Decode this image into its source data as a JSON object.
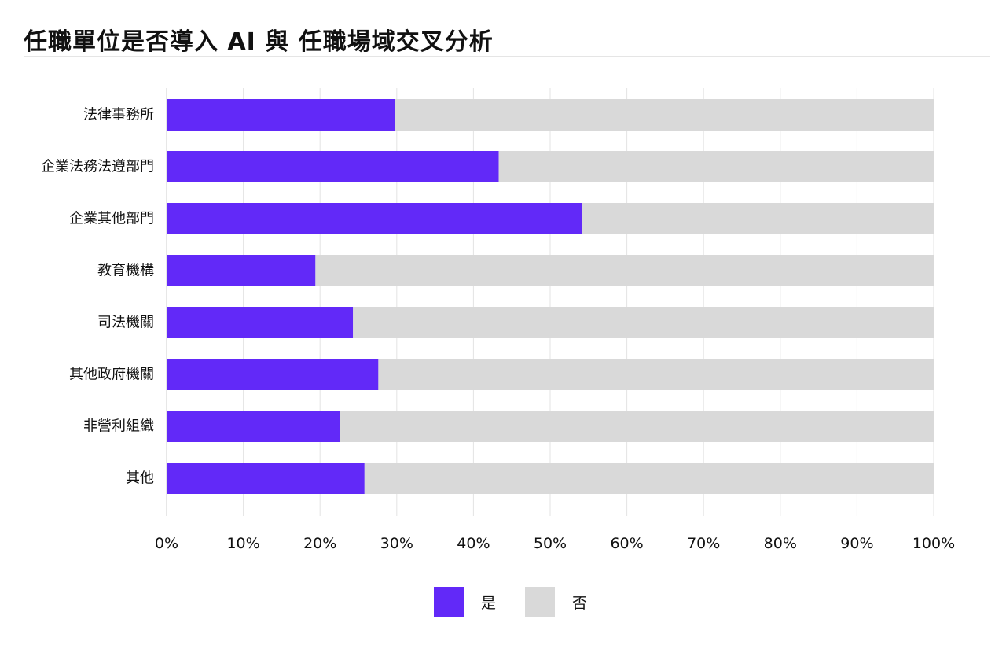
{
  "title": "任職單位是否導入 AI 與 任職場域交叉分析",
  "colors": {
    "yes": "#6229f8",
    "no": "#d9d9d9",
    "grid": "#e3e3e3",
    "axis": "#cfcfcf"
  },
  "legend": [
    {
      "label": "是",
      "color": "#6229f8"
    },
    {
      "label": "否",
      "color": "#d9d9d9"
    }
  ],
  "chart_data": {
    "type": "bar",
    "orientation": "horizontal",
    "stacked": true,
    "normalized": true,
    "title": "任職單位是否導入 AI 與 任職場域交叉分析",
    "categories": [
      "法律事務所",
      "企業法務法遵部門",
      "企業其他部門",
      "教育機構",
      "司法機關",
      "其他政府機關",
      "非營利組織",
      "其他"
    ],
    "series": [
      {
        "name": "是",
        "values": [
          29.8,
          43.3,
          54.2,
          19.4,
          24.3,
          27.6,
          22.6,
          25.8
        ]
      },
      {
        "name": "否",
        "values": [
          70.2,
          56.7,
          45.8,
          80.6,
          75.7,
          72.4,
          77.4,
          74.2
        ]
      }
    ],
    "xlim": [
      0,
      100
    ],
    "x_ticks": [
      "0%",
      "10%",
      "20%",
      "30%",
      "40%",
      "50%",
      "60%",
      "70%",
      "80%",
      "90%",
      "100%"
    ],
    "xlabel": "",
    "ylabel": "",
    "grid": true,
    "legend_position": "bottom-center"
  }
}
